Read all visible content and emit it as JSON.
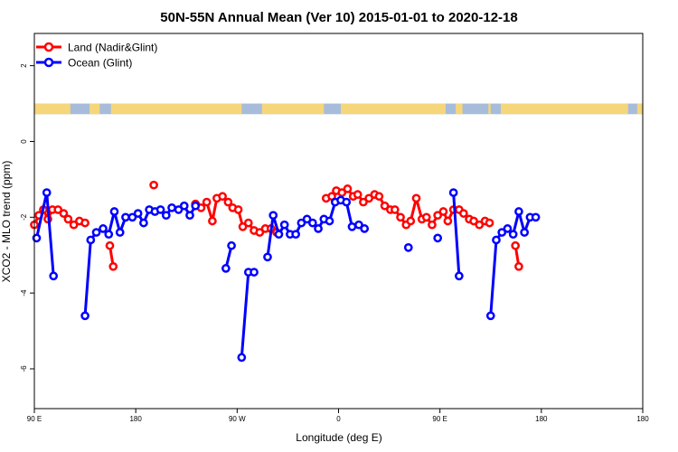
{
  "colors": {
    "land": "#ff0000",
    "ocean": "#0000ff",
    "land_mass": "#f5d67a",
    "water": "#a7bcdb"
  },
  "chart_data": {
    "type": "line",
    "title": "50N-55N Annual Mean (Ver 10)   2015-01-01 to 2020-12-18",
    "xlabel": "Longitude (deg E)",
    "ylabel": "XCO2 - MLO trend (ppm)",
    "xlim": [
      90,
      630
    ],
    "ylim": [
      -7.05,
      2.85
    ],
    "xticks": [
      {
        "value": 90,
        "label": "90 E"
      },
      {
        "value": 180,
        "label": "180"
      },
      {
        "value": 270,
        "label": "90 W"
      },
      {
        "value": 360,
        "label": "0"
      },
      {
        "value": 450,
        "label": "90 E"
      },
      {
        "value": 540,
        "label": "180"
      },
      {
        "value": 630,
        "label": "180"
      }
    ],
    "yticks": [
      {
        "value": 2,
        "label": "2"
      },
      {
        "value": 0,
        "label": "0"
      },
      {
        "value": -2,
        "label": "-2"
      },
      {
        "value": -4,
        "label": "-4"
      },
      {
        "value": -6,
        "label": "-6"
      }
    ],
    "legend": [
      "Land (Nadir&Glint)",
      "Ocean (Glint)"
    ],
    "legend_position": "top-left",
    "land_strip": {
      "y_top": 1.0,
      "y_bottom": 0.72,
      "land_spans": [
        [
          90,
          122
        ],
        [
          139,
          148
        ],
        [
          158,
          274
        ],
        [
          292,
          347
        ],
        [
          362,
          455
        ],
        [
          464,
          470
        ],
        [
          493,
          495
        ],
        [
          504,
          617
        ],
        [
          625,
          630
        ]
      ]
    },
    "series": [
      {
        "name": "Land (Nadir&Glint)",
        "segments": [
          [
            [
              90,
              -2.2
            ],
            [
              94,
              -1.95
            ],
            [
              98,
              -1.8
            ],
            [
              102,
              -2.05
            ],
            [
              106,
              -1.8
            ],
            [
              111,
              -1.8
            ],
            [
              116,
              -1.9
            ],
            [
              120,
              -2.05
            ],
            [
              125,
              -2.2
            ],
            [
              130,
              -2.1
            ],
            [
              135,
              -2.15
            ]
          ],
          [
            [
              157,
              -2.75
            ],
            [
              160,
              -3.3
            ]
          ],
          [
            [
              196,
              -1.15
            ]
          ],
          [
            [
              233,
              -1.65
            ],
            [
              238,
              -1.75
            ],
            [
              243,
              -1.6
            ],
            [
              248,
              -2.1
            ],
            [
              252,
              -1.5
            ],
            [
              257,
              -1.45
            ],
            [
              262,
              -1.6
            ],
            [
              266,
              -1.75
            ],
            [
              271,
              -1.8
            ],
            [
              275,
              -2.25
            ],
            [
              280,
              -2.15
            ],
            [
              285,
              -2.35
            ],
            [
              290,
              -2.4
            ],
            [
              295,
              -2.3
            ],
            [
              300,
              -2.3
            ],
            [
              305,
              -2.4
            ]
          ],
          [
            [
              349,
              -1.5
            ],
            [
              354,
              -1.45
            ],
            [
              358,
              -1.3
            ],
            [
              363,
              -1.35
            ],
            [
              368,
              -1.25
            ],
            [
              373,
              -1.45
            ],
            [
              377,
              -1.4
            ],
            [
              382,
              -1.6
            ],
            [
              387,
              -1.5
            ],
            [
              392,
              -1.4
            ],
            [
              396,
              -1.45
            ],
            [
              401,
              -1.7
            ],
            [
              406,
              -1.8
            ],
            [
              410,
              -1.8
            ],
            [
              415,
              -2.0
            ],
            [
              420,
              -2.2
            ],
            [
              424,
              -2.1
            ],
            [
              429,
              -1.5
            ],
            [
              434,
              -2.05
            ],
            [
              438,
              -2.0
            ],
            [
              443,
              -2.2
            ],
            [
              448,
              -1.95
            ],
            [
              453,
              -1.85
            ],
            [
              457,
              -2.1
            ],
            [
              462,
              -1.8
            ],
            [
              467,
              -1.8
            ],
            [
              471,
              -1.9
            ],
            [
              476,
              -2.05
            ],
            [
              480,
              -2.1
            ],
            [
              485,
              -2.2
            ],
            [
              490,
              -2.1
            ],
            [
              494,
              -2.15
            ]
          ],
          [
            [
              517,
              -2.75
            ],
            [
              520,
              -3.3
            ]
          ]
        ]
      },
      {
        "name": "Ocean (Glint)",
        "segments": [
          [
            [
              92,
              -2.55
            ],
            [
              101,
              -1.35
            ],
            [
              107,
              -3.55
            ]
          ],
          [
            [
              135,
              -4.6
            ],
            [
              140,
              -2.6
            ],
            [
              145,
              -2.4
            ],
            [
              151,
              -2.3
            ],
            [
              156,
              -2.45
            ],
            [
              161,
              -1.85
            ],
            [
              166,
              -2.4
            ],
            [
              171,
              -2.0
            ],
            [
              177,
              -2.0
            ],
            [
              182,
              -1.9
            ],
            [
              187,
              -2.15
            ],
            [
              192,
              -1.8
            ],
            [
              197,
              -1.85
            ],
            [
              202,
              -1.8
            ],
            [
              207,
              -1.95
            ],
            [
              212,
              -1.75
            ],
            [
              218,
              -1.8
            ],
            [
              223,
              -1.7
            ],
            [
              228,
              -1.95
            ],
            [
              233,
              -1.7
            ]
          ],
          [
            [
              260,
              -3.35
            ],
            [
              265,
              -2.75
            ]
          ],
          [
            [
              274,
              -5.7
            ],
            [
              280,
              -3.45
            ],
            [
              285,
              -3.45
            ]
          ],
          [
            [
              297,
              -3.05
            ],
            [
              302,
              -1.95
            ],
            [
              307,
              -2.45
            ],
            [
              312,
              -2.2
            ],
            [
              317,
              -2.45
            ],
            [
              322,
              -2.45
            ],
            [
              327,
              -2.15
            ],
            [
              332,
              -2.05
            ],
            [
              337,
              -2.15
            ],
            [
              342,
              -2.3
            ],
            [
              347,
              -2.05
            ],
            [
              352,
              -2.1
            ],
            [
              357,
              -1.6
            ],
            [
              362,
              -1.55
            ],
            [
              367,
              -1.6
            ],
            [
              372,
              -2.25
            ],
            [
              378,
              -2.2
            ],
            [
              383,
              -2.3
            ]
          ],
          [
            [
              422,
              -2.8
            ]
          ],
          [
            [
              448,
              -2.55
            ]
          ],
          [
            [
              462,
              -1.35
            ],
            [
              467,
              -3.55
            ]
          ],
          [
            [
              495,
              -4.6
            ],
            [
              500,
              -2.6
            ],
            [
              505,
              -2.4
            ],
            [
              510,
              -2.3
            ],
            [
              515,
              -2.45
            ],
            [
              520,
              -1.85
            ],
            [
              525,
              -2.4
            ],
            [
              530,
              -2.0
            ],
            [
              535,
              -2.0
            ]
          ]
        ]
      }
    ]
  }
}
